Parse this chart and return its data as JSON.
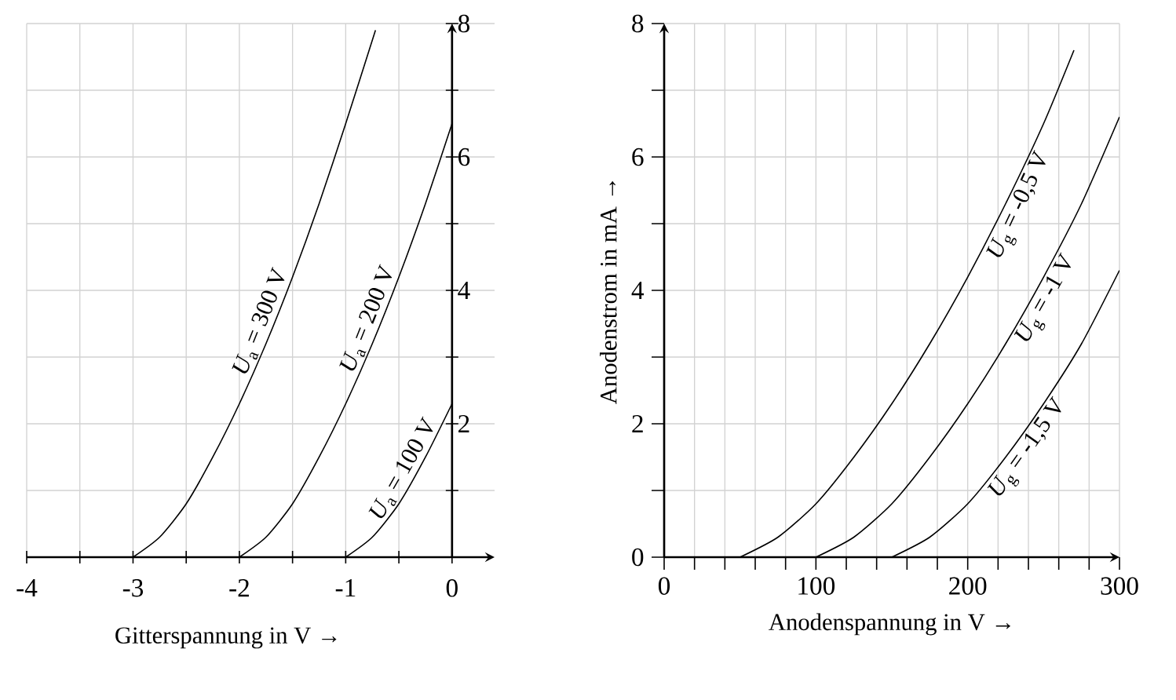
{
  "chart_data": [
    {
      "type": "line",
      "xlabel": "Gitterspannung in V →",
      "xlim": [
        -4,
        0.4
      ],
      "ylim": [
        0,
        8
      ],
      "xticks": [
        -4,
        {
          "value": -3.5,
          "label": null
        },
        -3,
        {
          "value": -2.5,
          "label": null
        },
        -2,
        {
          "value": -1.5,
          "label": null
        },
        -1,
        {
          "value": -0.5,
          "label": null
        },
        0
      ],
      "yticks": [
        {
          "value": 1,
          "label": null
        },
        2,
        {
          "value": 3,
          "label": null
        },
        4,
        {
          "value": 5,
          "label": null
        },
        6,
        {
          "value": 7,
          "label": null
        },
        8
      ],
      "grid": true,
      "line_style": "solid",
      "marker": "none",
      "series": [
        {
          "name": "*U*$_{a}$ = 300 V",
          "color": "#000000",
          "x": [
            -3,
            -2.75,
            -2.5,
            -2.25,
            -2,
            -1.75,
            -1.5,
            -1.25,
            -1,
            -0.72
          ],
          "values": [
            0,
            0.3,
            0.8,
            1.5,
            2.3,
            3.2,
            4.2,
            5.3,
            6.5,
            7.9
          ]
        },
        {
          "name": "*U*$_{a}$ = 200 V",
          "color": "#000000",
          "x": [
            -2,
            -1.75,
            -1.5,
            -1.25,
            -1,
            -0.75,
            -0.5,
            -0.25,
            0
          ],
          "values": [
            0,
            0.3,
            0.8,
            1.5,
            2.3,
            3.2,
            4.2,
            5.3,
            6.5
          ]
        },
        {
          "name": "*U*$_{a}$ = 100 V",
          "color": "#000000",
          "x": [
            -1,
            -0.75,
            -0.5,
            -0.25,
            0
          ],
          "values": [
            0,
            0.3,
            0.8,
            1.5,
            2.3
          ]
        }
      ]
    },
    {
      "type": "line",
      "xlabel": "Anodenspannung in V →",
      "ylabel": "Anodenstrom in mA →",
      "xlim": [
        0,
        300
      ],
      "ylim": [
        0,
        8
      ],
      "xticks": [
        0,
        {
          "value": 20,
          "label": null
        },
        {
          "value": 40,
          "label": null
        },
        {
          "value": 60,
          "label": null
        },
        {
          "value": 80,
          "label": null
        },
        100,
        {
          "value": 120,
          "label": null
        },
        {
          "value": 140,
          "label": null
        },
        {
          "value": 160,
          "label": null
        },
        {
          "value": 180,
          "label": null
        },
        200,
        {
          "value": 220,
          "label": null
        },
        {
          "value": 240,
          "label": null
        },
        {
          "value": 260,
          "label": null
        },
        {
          "value": 280,
          "label": null
        },
        300
      ],
      "yticks": [
        0,
        {
          "value": 1,
          "label": null
        },
        2,
        {
          "value": 3,
          "label": null
        },
        4,
        {
          "value": 5,
          "label": null
        },
        6,
        {
          "value": 7,
          "label": null
        },
        8
      ],
      "grid": true,
      "line_style": "solid",
      "marker": "none",
      "series": [
        {
          "name": "*U*$_{g}$ = -0,5 V",
          "color": "#000000",
          "x": [
            50,
            75,
            100,
            125,
            150,
            175,
            200,
            225,
            250,
            270
          ],
          "values": [
            0,
            0.3,
            0.8,
            1.5,
            2.3,
            3.2,
            4.2,
            5.3,
            6.5,
            7.6
          ]
        },
        {
          "name": "*U*$_{g}$ = -1 V",
          "color": "#000000",
          "x": [
            100,
            125,
            150,
            175,
            200,
            225,
            250,
            275,
            300
          ],
          "values": [
            0,
            0.3,
            0.8,
            1.5,
            2.3,
            3.2,
            4.2,
            5.3,
            6.6
          ]
        },
        {
          "name": "*U*$_{g}$ = -1,5 V",
          "color": "#000000",
          "x": [
            150,
            175,
            200,
            225,
            250,
            275,
            300
          ],
          "values": [
            0,
            0.3,
            0.8,
            1.5,
            2.3,
            3.2,
            4.3
          ]
        }
      ]
    }
  ]
}
